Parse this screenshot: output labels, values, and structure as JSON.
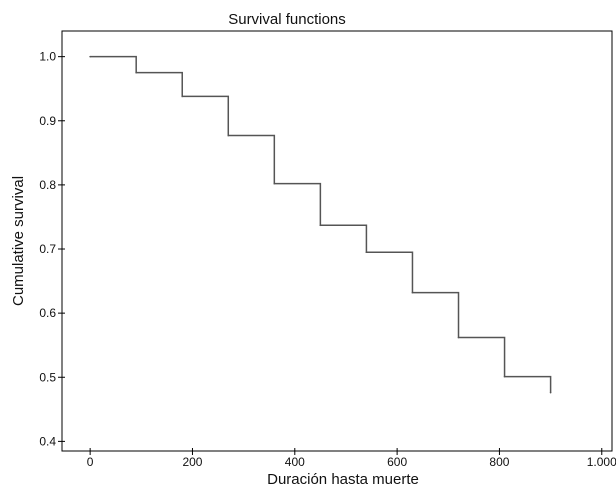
{
  "chart_data": {
    "type": "line",
    "title": "Survival functions",
    "xlabel": "Duración hasta muerte",
    "ylabel": "Cumulative survival",
    "xlim": [
      -55,
      1020
    ],
    "ylim": [
      0.385,
      1.04
    ],
    "x_ticks": [
      0,
      200,
      400,
      600,
      800,
      1000
    ],
    "x_tick_labels": [
      "0",
      "200",
      "400",
      "600",
      "800",
      "1.000"
    ],
    "y_ticks": [
      0.4,
      0.5,
      0.6,
      0.7,
      0.8,
      0.9,
      1.0
    ],
    "y_tick_labels": [
      "0.4",
      "0.5",
      "0.6",
      "0.7",
      "0.8",
      "0.9",
      "1.0"
    ],
    "grid": false,
    "legend": "none",
    "line_color": "#555555",
    "series": [
      {
        "step": "post",
        "x": [
          0,
          90,
          180,
          270,
          360,
          450,
          540,
          630,
          720,
          810,
          900
        ],
        "y": [
          1.0,
          0.975,
          0.938,
          0.877,
          0.802,
          0.737,
          0.695,
          0.632,
          0.562,
          0.501,
          0.476
        ]
      }
    ]
  }
}
